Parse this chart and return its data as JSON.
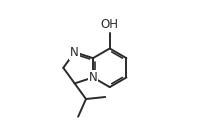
{
  "background": "#ffffff",
  "line_color": "#2b2b2b",
  "line_width": 1.4,
  "text_color": "#2b2b2b",
  "font_size": 8.5,
  "OH_label": "OH",
  "N_label": "N",
  "xlim": [
    0.0,
    5.5
  ],
  "ylim": [
    0.3,
    3.8
  ],
  "figsize": [
    1.98,
    1.32
  ],
  "dpi": 100
}
